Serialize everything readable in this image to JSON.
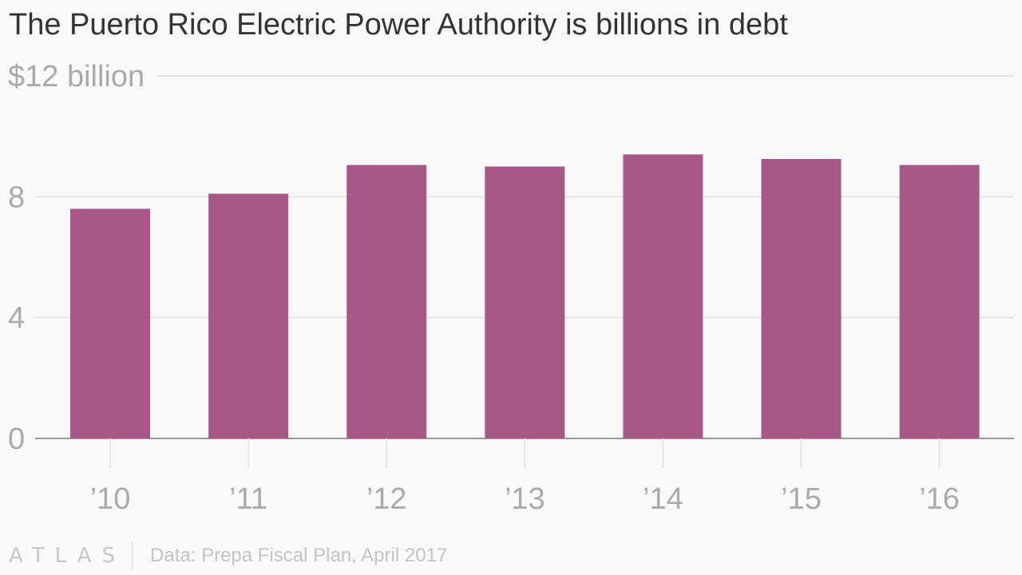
{
  "colors": {
    "bar": "#a85887",
    "grid": "#e6e6e6",
    "axis": "#999999",
    "tick_text": "#aaaaaa",
    "title": "#333333",
    "background": "#f9f9f9"
  },
  "chart_data": {
    "type": "bar",
    "title": "The Puerto Rico Electric Power Authority is billions in debt",
    "categories": [
      "’10",
      "’11",
      "’12",
      "’13",
      "’14",
      "’15",
      "’16"
    ],
    "series": [
      {
        "values": [
          7.6,
          8.1,
          9.05,
          9.0,
          9.4,
          9.25,
          9.05
        ]
      }
    ],
    "yticks": [
      0,
      4,
      8,
      12
    ],
    "ytick_labels": [
      "0",
      "4",
      "8",
      "$12 billion"
    ],
    "ylim": [
      0,
      12
    ],
    "grid": "horizontal",
    "legend": "none"
  },
  "footer": {
    "logo": "ATLAS",
    "source": "Data: Prepa Fiscal Plan, April 2017"
  }
}
